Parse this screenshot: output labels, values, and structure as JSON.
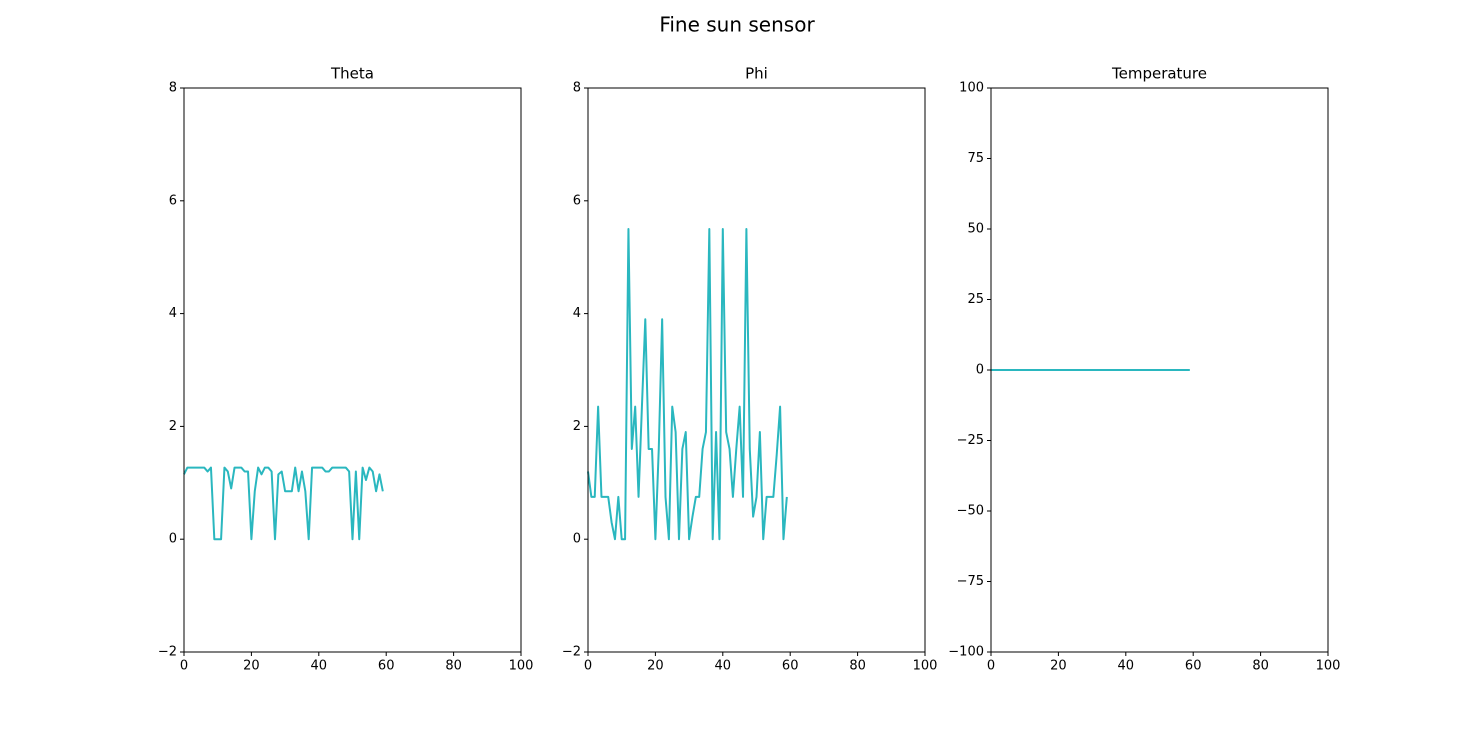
{
  "title": "Fine sun sensor",
  "chart_data": [
    {
      "type": "line",
      "title": "Theta",
      "x": [
        0,
        1,
        2,
        3,
        4,
        5,
        6,
        7,
        8,
        9,
        10,
        11,
        12,
        13,
        14,
        15,
        16,
        17,
        18,
        19,
        20,
        21,
        22,
        23,
        24,
        25,
        26,
        27,
        28,
        29,
        30,
        31,
        32,
        33,
        34,
        35,
        36,
        37,
        38,
        39,
        40,
        41,
        42,
        43,
        44,
        45,
        46,
        47,
        48,
        49,
        50,
        51,
        52,
        53,
        54,
        55,
        56,
        57,
        58,
        59
      ],
      "series": [
        {
          "color": "#2ab7bf",
          "values": [
            1.15,
            1.27,
            1.27,
            1.27,
            1.27,
            1.27,
            1.27,
            1.2,
            1.27,
            0,
            0,
            0,
            1.27,
            1.2,
            0.9,
            1.27,
            1.27,
            1.27,
            1.2,
            1.2,
            0,
            0.85,
            1.27,
            1.15,
            1.27,
            1.27,
            1.2,
            0,
            1.15,
            1.2,
            0.85,
            0.85,
            0.85,
            1.27,
            0.85,
            1.2,
            0.85,
            0,
            1.27,
            1.27,
            1.27,
            1.27,
            1.2,
            1.2,
            1.27,
            1.27,
            1.27,
            1.27,
            1.27,
            1.2,
            0,
            1.2,
            0,
            1.27,
            1.05,
            1.27,
            1.2,
            0.85,
            1.15,
            0.85
          ]
        }
      ],
      "xlim": [
        0,
        100
      ],
      "xticks": [
        0,
        20,
        40,
        60,
        80,
        100
      ],
      "ylim": [
        -2,
        8
      ],
      "yticks": [
        {
          "value": -2,
          "label": "−2"
        },
        0,
        2,
        4,
        6,
        8
      ]
    },
    {
      "type": "line",
      "title": "Phi",
      "x": [
        0,
        1,
        2,
        3,
        4,
        5,
        6,
        7,
        8,
        9,
        10,
        11,
        12,
        13,
        14,
        15,
        16,
        17,
        18,
        19,
        20,
        21,
        22,
        23,
        24,
        25,
        26,
        27,
        28,
        29,
        30,
        31,
        32,
        33,
        34,
        35,
        36,
        37,
        38,
        39,
        40,
        41,
        42,
        43,
        44,
        45,
        46,
        47,
        48,
        49,
        50,
        51,
        52,
        53,
        54,
        55,
        56,
        57,
        58,
        59
      ],
      "series": [
        {
          "color": "#2ab7bf",
          "values": [
            1.2,
            0.75,
            0.75,
            2.35,
            0.75,
            0.75,
            0.75,
            0.3,
            0,
            0.75,
            0,
            0,
            5.5,
            1.6,
            2.35,
            0.75,
            2.35,
            3.9,
            1.6,
            1.6,
            0,
            1.6,
            3.9,
            0.75,
            0,
            2.35,
            1.9,
            0,
            1.6,
            1.9,
            0,
            0.4,
            0.75,
            0.75,
            1.6,
            1.9,
            5.5,
            0,
            1.9,
            0,
            5.5,
            1.9,
            1.6,
            0.75,
            1.6,
            2.35,
            0.75,
            5.5,
            1.6,
            0.4,
            0.75,
            1.9,
            0,
            0.75,
            0.75,
            0.75,
            1.5,
            2.35,
            0,
            0.75
          ]
        }
      ],
      "xlim": [
        0,
        100
      ],
      "xticks": [
        0,
        20,
        40,
        60,
        80,
        100
      ],
      "ylim": [
        -2,
        8
      ],
      "yticks": [
        {
          "value": -2,
          "label": "−2"
        },
        0,
        2,
        4,
        6,
        8
      ]
    },
    {
      "type": "line",
      "title": "Temperature",
      "x": [
        0,
        1,
        2,
        3,
        4,
        5,
        6,
        7,
        8,
        9,
        10,
        11,
        12,
        13,
        14,
        15,
        16,
        17,
        18,
        19,
        20,
        21,
        22,
        23,
        24,
        25,
        26,
        27,
        28,
        29,
        30,
        31,
        32,
        33,
        34,
        35,
        36,
        37,
        38,
        39,
        40,
        41,
        42,
        43,
        44,
        45,
        46,
        47,
        48,
        49,
        50,
        51,
        52,
        53,
        54,
        55,
        56,
        57,
        58,
        59
      ],
      "series": [
        {
          "color": "#2ab7bf",
          "values": [
            0,
            0,
            0,
            0,
            0,
            0,
            0,
            0,
            0,
            0,
            0,
            0,
            0,
            0,
            0,
            0,
            0,
            0,
            0,
            0,
            0,
            0,
            0,
            0,
            0,
            0,
            0,
            0,
            0,
            0,
            0,
            0,
            0,
            0,
            0,
            0,
            0,
            0,
            0,
            0,
            0,
            0,
            0,
            0,
            0,
            0,
            0,
            0,
            0,
            0,
            0,
            0,
            0,
            0,
            0,
            0,
            0,
            0,
            0,
            0
          ]
        }
      ],
      "xlim": [
        0,
        100
      ],
      "xticks": [
        0,
        20,
        40,
        60,
        80,
        100
      ],
      "ylim": [
        -100,
        100
      ],
      "yticks": [
        {
          "value": -100,
          "label": "−100"
        },
        {
          "value": -75,
          "label": "−75"
        },
        {
          "value": -50,
          "label": "−50"
        },
        {
          "value": -25,
          "label": "−25"
        },
        0,
        25,
        50,
        75,
        100
      ]
    }
  ]
}
